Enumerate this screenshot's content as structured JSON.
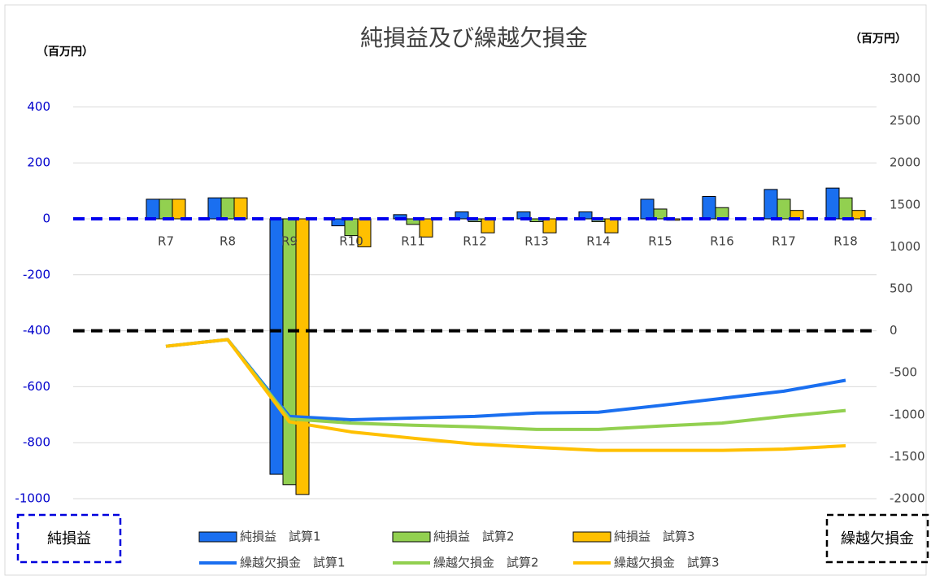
{
  "chart_data": {
    "type": "combo",
    "title": "純損益及び繰越欠損金",
    "y_unit": "（百万円）",
    "y2_unit": "（百万円）",
    "left_box_label": "純損益",
    "right_box_label": "繰越欠損金",
    "categories": [
      null,
      "R7",
      "R8",
      "R9",
      "R10",
      "R11",
      "R12",
      "R13",
      "R14",
      "R15",
      "R16",
      "R17",
      "R18"
    ],
    "ylim": [
      -1000,
      500
    ],
    "yticks": [
      -1000,
      -800,
      -600,
      -400,
      -200,
      0,
      200,
      400
    ],
    "y2lim": [
      -2000,
      3000
    ],
    "y2ticks": [
      -2000,
      -1500,
      -1000,
      -500,
      0,
      500,
      1000,
      1500,
      2000,
      2500,
      3000
    ],
    "grid": true,
    "series": [
      {
        "name": "純損益　試算1",
        "type": "bar",
        "color": "#1a6ff0",
        "values": [
          null,
          70,
          75,
          -913,
          -25,
          15,
          25,
          25,
          25,
          70,
          80,
          105,
          110
        ]
      },
      {
        "name": "純損益　試算2",
        "type": "bar",
        "color": "#92d050",
        "values": [
          null,
          70,
          75,
          -950,
          -60,
          -20,
          -10,
          -10,
          -10,
          35,
          40,
          70,
          75
        ]
      },
      {
        "name": "純損益　試算3",
        "type": "bar",
        "color": "#ffc000",
        "values": [
          null,
          70,
          75,
          -985,
          -100,
          -65,
          -50,
          -50,
          -50,
          -5,
          0,
          30,
          30
        ]
      },
      {
        "name": "繰越欠損金　試算1",
        "type": "line",
        "axis": "y2",
        "color": "#1a6ff0",
        "values": [
          null,
          -185,
          -105,
          -1020,
          -1060,
          -1040,
          -1020,
          -980,
          -970,
          -890,
          -805,
          -720,
          -590
        ]
      },
      {
        "name": "繰越欠損金　試算2",
        "type": "line",
        "axis": "y2",
        "color": "#92d050",
        "values": [
          null,
          -185,
          -105,
          -1050,
          -1100,
          -1125,
          -1145,
          -1175,
          -1175,
          -1135,
          -1100,
          -1020,
          -950
        ]
      },
      {
        "name": "繰越欠損金　試算3",
        "type": "line",
        "axis": "y2",
        "color": "#ffc000",
        "values": [
          null,
          -185,
          -105,
          -1085,
          -1205,
          -1280,
          -1350,
          -1390,
          -1425,
          -1425,
          -1425,
          -1410,
          -1370
        ]
      }
    ]
  }
}
